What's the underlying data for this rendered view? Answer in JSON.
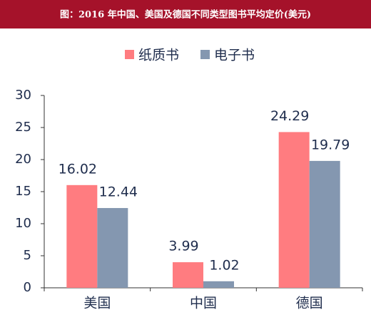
{
  "chart_data": {
    "type": "bar",
    "title": "图：2016 年中国、美国及德国不同类型图书平均定价(美元)",
    "categories": [
      "美国",
      "中国",
      "德国"
    ],
    "series": [
      {
        "name": "纸质书",
        "color": "#ff7c80",
        "values": [
          16.02,
          3.99,
          24.29
        ]
      },
      {
        "name": "电子书",
        "color": "#8497b0",
        "values": [
          12.44,
          1.02,
          19.79
        ]
      }
    ],
    "ylim": [
      0,
      30
    ],
    "yticks": [
      0,
      5,
      10,
      15,
      20,
      25,
      30
    ],
    "grid": false,
    "legend": "top"
  }
}
